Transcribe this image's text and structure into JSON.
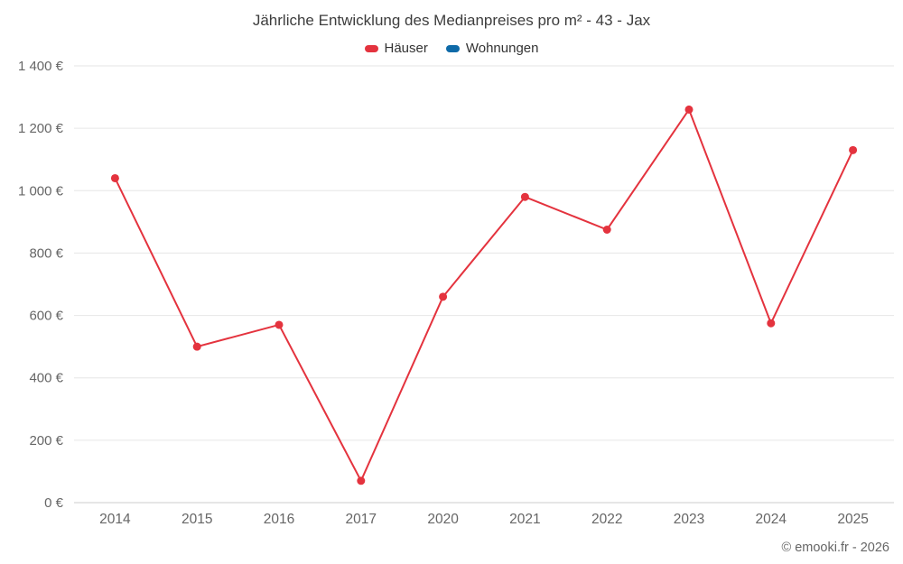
{
  "title": "Jährliche Entwicklung des Medianpreises pro m² - 43 - Jax",
  "legend": {
    "items": [
      {
        "label": "Häuser",
        "color": "#e4333e"
      },
      {
        "label": "Wohnungen",
        "color": "#0e6aa8"
      }
    ]
  },
  "footer": {
    "credit": "© emooki.fr - 2026"
  },
  "chart_data": {
    "type": "line",
    "title": "Jährliche Entwicklung des Medianpreises pro m² - 43 - Jax",
    "categories": [
      "2014",
      "2015",
      "2016",
      "2017",
      "2020",
      "2021",
      "2022",
      "2023",
      "2024",
      "2025"
    ],
    "series": [
      {
        "name": "Häuser",
        "color": "#e4333e",
        "values": [
          1040,
          500,
          570,
          70,
          660,
          980,
          875,
          1260,
          575,
          1130
        ]
      },
      {
        "name": "Wohnungen",
        "color": "#0e6aa8",
        "values": []
      }
    ],
    "xlabel": "",
    "ylabel": "",
    "ylim": [
      0,
      1400
    ],
    "yticks": [
      0,
      200,
      400,
      600,
      800,
      1000,
      1200,
      1400
    ],
    "ytick_labels": [
      "0 €",
      "200 €",
      "400 €",
      "600 €",
      "800 €",
      "1 000 €",
      "1 200 €",
      "1 400 €"
    ],
    "grid": true,
    "legend_position": "top",
    "marker": "circle"
  }
}
